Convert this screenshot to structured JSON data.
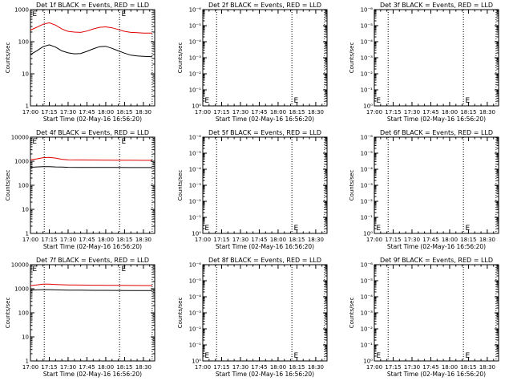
{
  "chart_data": [
    {
      "type": "line",
      "title": "Det 1f BLACK = Events, RED = LLD",
      "ylabel": "Counts/sec",
      "xlabel": "Start Time (02-May-16 16:56:20)",
      "log_y": true,
      "ylim": [
        1,
        1000
      ],
      "ytick_labels": [
        "1",
        "10",
        "100",
        "1000"
      ],
      "xtick_labels": [
        "17:00",
        "17:15",
        "17:30",
        "17:45",
        "18:00",
        "18:15",
        "18:30"
      ],
      "series": [
        {
          "color": "#e00000",
          "x": [
            "17:00",
            "17:05",
            "17:10",
            "17:15",
            "17:20",
            "17:25",
            "17:30",
            "17:35",
            "17:40",
            "17:45",
            "17:50",
            "17:55",
            "18:00",
            "18:05",
            "18:10",
            "18:15",
            "18:20",
            "18:25",
            "18:30",
            "18:37"
          ],
          "values": [
            230,
            280,
            350,
            390,
            330,
            250,
            210,
            200,
            195,
            215,
            250,
            280,
            290,
            270,
            240,
            210,
            195,
            190,
            185,
            185
          ]
        },
        {
          "color": "#000000",
          "x": [
            "17:00",
            "17:05",
            "17:10",
            "17:15",
            "17:20",
            "17:25",
            "17:30",
            "17:35",
            "17:40",
            "17:45",
            "17:50",
            "17:55",
            "18:00",
            "18:05",
            "18:10",
            "18:15",
            "18:20",
            "18:25",
            "18:30",
            "18:37"
          ],
          "values": [
            40,
            52,
            70,
            80,
            68,
            52,
            45,
            42,
            43,
            50,
            60,
            70,
            72,
            62,
            52,
            44,
            38,
            36,
            35,
            34
          ]
        }
      ]
    },
    {
      "type": "line",
      "title": "Det 2f BLACK = Events, RED = LLD",
      "ylabel": "Counts/sec",
      "xlabel": "Start Time (02-May-16 16:56:20)",
      "log_y": true,
      "ylim": [
        1,
        1e-06
      ],
      "ytick_labels": [
        "10⁰",
        "10⁻¹",
        "10⁻²",
        "10⁻³",
        "10⁻⁴",
        "10⁻⁵",
        "10⁻⁶"
      ],
      "xtick_labels": [
        "17:00",
        "17:15",
        "17:30",
        "17:45",
        "18:00",
        "18:15",
        "18:30"
      ],
      "series": []
    },
    {
      "type": "line",
      "title": "Det 3f BLACK = Events, RED = LLD",
      "ylabel": "Counts/sec",
      "xlabel": "Start Time (02-May-16 16:56:20)",
      "log_y": true,
      "ylim": [
        1,
        1e-06
      ],
      "ytick_labels": [
        "10⁰",
        "10⁻¹",
        "10⁻²",
        "10⁻³",
        "10⁻⁴",
        "10⁻⁵",
        "10⁻⁶"
      ],
      "xtick_labels": [
        "17:00",
        "17:15",
        "17:30",
        "17:45",
        "18:00",
        "18:15",
        "18:30"
      ],
      "series": []
    },
    {
      "type": "line",
      "title": "Det 4f BLACK = Events, RED = LLD",
      "ylabel": "Counts/sec",
      "xlabel": "Start Time (02-May-16 16:56:20)",
      "log_y": true,
      "ylim": [
        1,
        10000
      ],
      "ytick_labels": [
        "1",
        "10",
        "100",
        "1000",
        "10000"
      ],
      "xtick_labels": [
        "17:00",
        "17:15",
        "17:30",
        "17:45",
        "18:00",
        "18:15",
        "18:30"
      ],
      "series": [
        {
          "color": "#e00000",
          "x": [
            "17:00",
            "17:05",
            "17:10",
            "17:15",
            "17:20",
            "17:25",
            "17:30",
            "17:40",
            "17:50",
            "18:00",
            "18:10",
            "18:20",
            "18:30",
            "18:37"
          ],
          "values": [
            1150,
            1250,
            1400,
            1450,
            1350,
            1200,
            1150,
            1130,
            1120,
            1110,
            1100,
            1100,
            1090,
            1090
          ]
        },
        {
          "color": "#000000",
          "x": [
            "17:00",
            "17:05",
            "17:10",
            "17:15",
            "17:20",
            "17:25",
            "17:30",
            "17:40",
            "17:50",
            "18:00",
            "18:10",
            "18:20",
            "18:30",
            "18:37"
          ],
          "values": [
            560,
            580,
            600,
            600,
            580,
            570,
            560,
            555,
            550,
            550,
            548,
            545,
            545,
            545
          ]
        }
      ]
    },
    {
      "type": "line",
      "title": "Det 5f BLACK = Events, RED = LLD",
      "ylabel": "Counts/sec",
      "xlabel": "Start Time (02-May-16 16:56:20)",
      "log_y": true,
      "ylim": [
        1,
        1e-06
      ],
      "ytick_labels": [
        "10⁰",
        "10⁻¹",
        "10⁻²",
        "10⁻³",
        "10⁻⁴",
        "10⁻⁵",
        "10⁻⁶"
      ],
      "xtick_labels": [
        "17:00",
        "17:15",
        "17:30",
        "17:45",
        "18:00",
        "18:15",
        "18:30"
      ],
      "series": []
    },
    {
      "type": "line",
      "title": "Det 6f BLACK = Events, RED = LLD",
      "ylabel": "Counts/sec",
      "xlabel": "Start Time (02-May-16 16:56:20)",
      "log_y": true,
      "ylim": [
        1,
        1e-06
      ],
      "ytick_labels": [
        "10⁰",
        "10⁻¹",
        "10⁻²",
        "10⁻³",
        "10⁻⁴",
        "10⁻⁵",
        "10⁻⁶"
      ],
      "xtick_labels": [
        "17:00",
        "17:15",
        "17:30",
        "17:45",
        "18:00",
        "18:15",
        "18:30"
      ],
      "series": []
    },
    {
      "type": "line",
      "title": "Det 7f BLACK = Events, RED = LLD",
      "ylabel": "Counts/sec",
      "xlabel": "Start Time (02-May-16 16:56:20)",
      "log_y": true,
      "ylim": [
        1,
        10000
      ],
      "ytick_labels": [
        "1",
        "10",
        "100",
        "1000",
        "10000"
      ],
      "xtick_labels": [
        "17:00",
        "17:15",
        "17:30",
        "17:45",
        "18:00",
        "18:15",
        "18:30"
      ],
      "series": [
        {
          "color": "#e00000",
          "x": [
            "17:00",
            "17:05",
            "17:10",
            "17:15",
            "17:20",
            "17:30",
            "17:40",
            "17:50",
            "18:00",
            "18:10",
            "18:20",
            "18:30",
            "18:37"
          ],
          "values": [
            1350,
            1450,
            1550,
            1550,
            1500,
            1450,
            1420,
            1400,
            1390,
            1380,
            1370,
            1360,
            1360
          ]
        },
        {
          "color": "#000000",
          "x": [
            "17:00",
            "17:05",
            "17:10",
            "17:15",
            "17:20",
            "17:30",
            "17:40",
            "17:50",
            "18:00",
            "18:10",
            "18:20",
            "18:30",
            "18:37"
          ],
          "values": [
            870,
            900,
            920,
            920,
            900,
            880,
            870,
            860,
            855,
            850,
            845,
            840,
            840
          ]
        }
      ]
    },
    {
      "type": "line",
      "title": "Det 8f BLACK = Events, RED = LLD",
      "ylabel": "Counts/sec",
      "xlabel": "Start Time (02-May-16 16:56:20)",
      "log_y": true,
      "ylim": [
        1,
        1e-06
      ],
      "ytick_labels": [
        "10⁰",
        "10⁻¹",
        "10⁻²",
        "10⁻³",
        "10⁻⁴",
        "10⁻⁵",
        "10⁻⁶"
      ],
      "xtick_labels": [
        "17:00",
        "17:15",
        "17:30",
        "17:45",
        "18:00",
        "18:15",
        "18:30"
      ],
      "series": []
    },
    {
      "type": "line",
      "title": "Det 9f BLACK = Events, RED = LLD",
      "ylabel": "Counts/sec",
      "xlabel": "Start Time (02-May-16 16:56:20)",
      "log_y": true,
      "ylim": [
        1,
        1e-06
      ],
      "ytick_labels": [
        "10⁰",
        "10⁻¹",
        "10⁻²",
        "10⁻³",
        "10⁻⁴",
        "10⁻⁵",
        "10⁻⁶"
      ],
      "xtick_labels": [
        "17:00",
        "17:15",
        "17:30",
        "17:45",
        "18:00",
        "18:15",
        "18:30"
      ],
      "series": []
    }
  ],
  "time_markers": [
    "17:11",
    "18:11",
    "18:37"
  ],
  "e_glyph": "E"
}
